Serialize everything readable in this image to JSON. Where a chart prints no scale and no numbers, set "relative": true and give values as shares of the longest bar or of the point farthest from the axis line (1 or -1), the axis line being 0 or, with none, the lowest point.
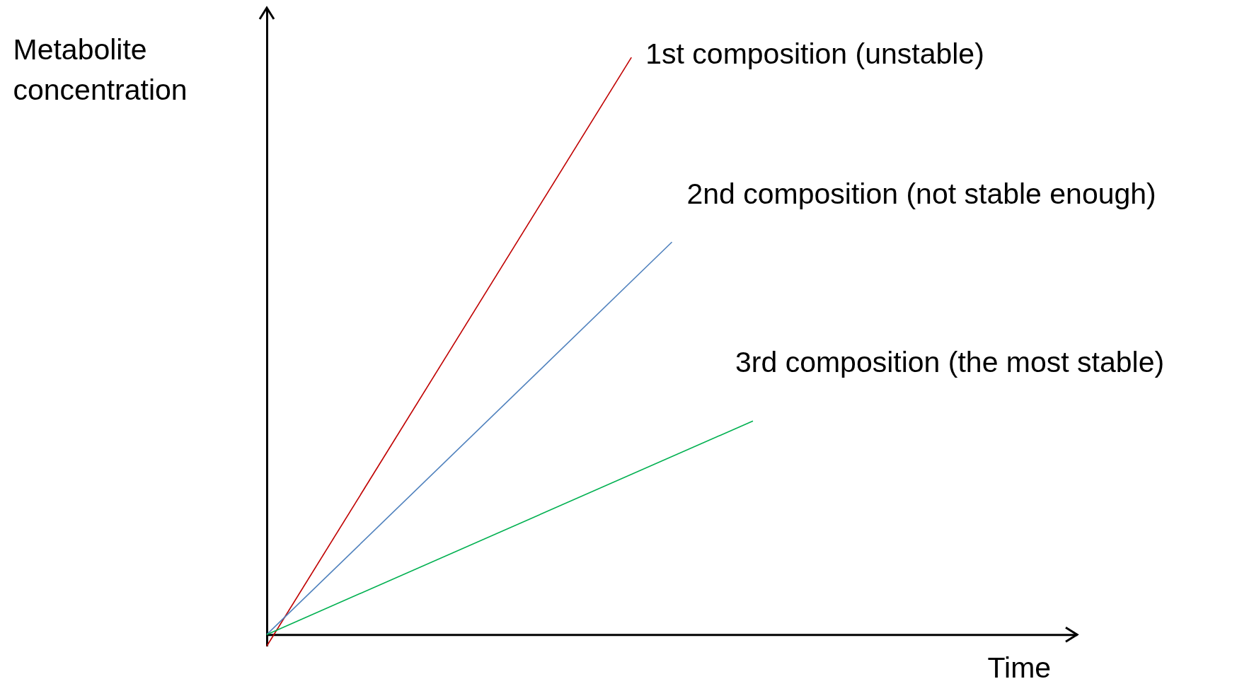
{
  "chart_data": {
    "type": "line",
    "relative": true,
    "xlabel": "Time",
    "ylabel": "Metabolite concentration",
    "line_style": "solid",
    "marker": "none",
    "categories": [
      null,
      null,
      null,
      null,
      null,
      null,
      null,
      null,
      null,
      null,
      null,
      null,
      null,
      null,
      null,
      null,
      null,
      null,
      null,
      null,
      null
    ],
    "series": [
      {
        "name": "1st composition (unstable)",
        "color": "#c00000",
        "values": [
          -0.02,
          null,
          null,
          null,
          null,
          null,
          null,
          null,
          null,
          1,
          null,
          null,
          null,
          null,
          null,
          null,
          null,
          null,
          null,
          null,
          null
        ]
      },
      {
        "name": "2nd composition (not stable enough)",
        "color": "#4f81bd",
        "values": [
          0,
          null,
          null,
          null,
          null,
          null,
          null,
          null,
          null,
          null,
          0.68,
          null,
          null,
          null,
          null,
          null,
          null,
          null,
          null,
          null,
          null
        ]
      },
      {
        "name": "3rd composition (the most stable)",
        "color": "#00b050",
        "values": [
          0,
          null,
          null,
          null,
          null,
          null,
          null,
          null,
          null,
          null,
          null,
          null,
          0.37,
          null,
          null,
          null,
          null,
          null,
          null,
          null,
          null
        ]
      }
    ]
  }
}
